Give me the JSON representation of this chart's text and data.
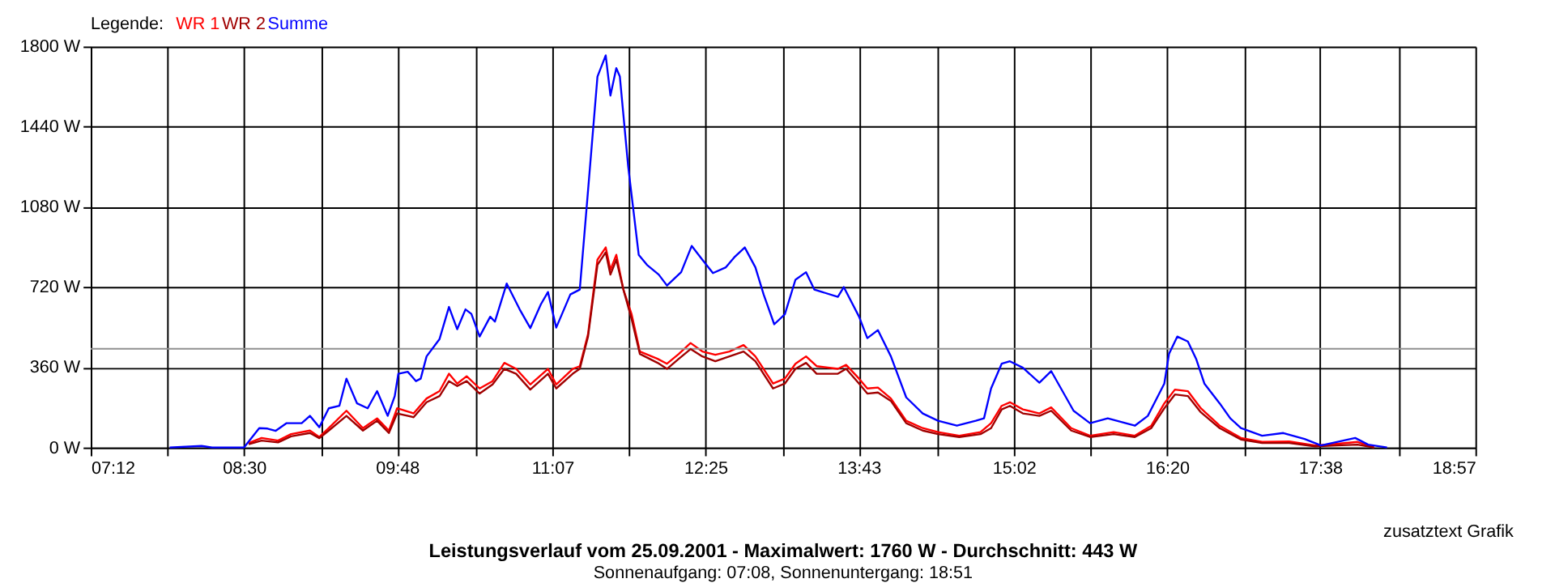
{
  "chart_data": {
    "type": "line",
    "title": "Leistungsverlauf vom 25.09.2001 - Maximalwert: 1760 W - Durchschnitt: 443 W",
    "subtitle": "Sonnenaufgang: 07:08, Sonnenuntergang: 18:51",
    "legend_title": "Legende:",
    "annotations": [
      "zusatztext Grafik"
    ],
    "series": [
      {
        "name": "WR 1",
        "color": "#ff0000",
        "x": [
          8.54,
          8.65,
          8.79,
          8.9,
          9.06,
          9.14,
          9.22,
          9.37,
          9.51,
          9.63,
          9.73,
          9.8,
          9.94,
          10.05,
          10.16,
          10.24,
          10.31,
          10.39,
          10.5,
          10.61,
          10.71,
          10.81,
          10.93,
          11.08,
          11.15,
          11.29,
          11.35,
          11.42,
          11.5,
          11.57,
          11.61,
          11.66,
          11.72,
          11.79,
          11.86,
          12.01,
          12.09,
          12.19,
          12.29,
          12.39,
          12.5,
          12.62,
          12.74,
          12.84,
          12.99,
          13.09,
          13.18,
          13.27,
          13.36,
          13.54,
          13.61,
          13.72,
          13.79,
          13.88,
          13.99,
          14.12,
          14.26,
          14.39,
          14.57,
          14.75,
          14.84,
          14.93,
          15.0,
          15.11,
          15.25,
          15.35,
          15.52,
          15.68,
          15.88,
          16.06,
          16.2,
          16.31,
          16.4,
          16.51,
          16.62,
          16.78,
          16.96,
          17.14,
          17.37,
          17.59,
          17.77,
          17.95,
          18.09
        ],
        "values": [
          20,
          43,
          31,
          60,
          76,
          47,
          87,
          165,
          87,
          131,
          76,
          176,
          153,
          220,
          253,
          331,
          287,
          320,
          265,
          298,
          380,
          353,
          283,
          353,
          283,
          353,
          365,
          509,
          843,
          898,
          798,
          865,
          709,
          598,
          431,
          398,
          376,
          420,
          469,
          431,
          416,
          431,
          460,
          409,
          287,
          309,
          376,
          409,
          365,
          353,
          371,
          309,
          265,
          269,
          220,
          120,
          87,
          69,
          53,
          69,
          109,
          187,
          203,
          171,
          153,
          180,
          87,
          53,
          69,
          53,
          98,
          198,
          260,
          253,
          176,
          98,
          43,
          25,
          27,
          9,
          16,
          25,
          0
        ]
      },
      {
        "name": "WR 2",
        "color": "#a00000",
        "x": [
          8.54,
          8.65,
          8.79,
          8.9,
          9.06,
          9.14,
          9.22,
          9.37,
          9.51,
          9.63,
          9.73,
          9.8,
          9.94,
          10.05,
          10.16,
          10.24,
          10.31,
          10.39,
          10.5,
          10.61,
          10.71,
          10.81,
          10.93,
          11.08,
          11.15,
          11.29,
          11.35,
          11.42,
          11.5,
          11.57,
          11.61,
          11.66,
          11.72,
          11.79,
          11.86,
          12.01,
          12.09,
          12.19,
          12.29,
          12.39,
          12.5,
          12.62,
          12.74,
          12.84,
          12.99,
          13.09,
          13.18,
          13.27,
          13.36,
          13.54,
          13.61,
          13.72,
          13.79,
          13.88,
          13.99,
          14.12,
          14.26,
          14.39,
          14.57,
          14.75,
          14.84,
          14.93,
          15.0,
          15.11,
          15.25,
          15.35,
          15.52,
          15.68,
          15.88,
          16.06,
          16.2,
          16.31,
          16.4,
          16.51,
          16.62,
          16.78,
          16.96,
          17.14,
          17.37,
          17.59,
          17.77,
          17.95,
          18.09
        ],
        "values": [
          15,
          31,
          23,
          50,
          65,
          42,
          76,
          142,
          76,
          120,
          65,
          153,
          136,
          203,
          231,
          298,
          276,
          298,
          242,
          283,
          353,
          331,
          260,
          331,
          265,
          331,
          353,
          498,
          820,
          876,
          776,
          843,
          709,
          576,
          420,
          380,
          353,
          398,
          442,
          409,
          387,
          409,
          431,
          387,
          265,
          287,
          353,
          380,
          331,
          331,
          353,
          287,
          242,
          247,
          209,
          109,
          76,
          60,
          47,
          60,
          87,
          171,
          187,
          153,
          142,
          165,
          76,
          47,
          60,
          47,
          87,
          176,
          238,
          231,
          158,
          87,
          36,
          20,
          20,
          5,
          9,
          13,
          0
        ]
      },
      {
        "name": "Summe",
        "color": "#0000ff",
        "x": [
          7.87,
          8.14,
          8.23,
          8.5,
          8.63,
          8.7,
          8.77,
          8.86,
          8.99,
          9.06,
          9.14,
          9.22,
          9.31,
          9.37,
          9.46,
          9.55,
          9.63,
          9.72,
          9.78,
          9.81,
          9.89,
          9.96,
          10.0,
          10.05,
          10.16,
          10.24,
          10.31,
          10.38,
          10.43,
          10.5,
          10.59,
          10.63,
          10.73,
          10.84,
          10.93,
          11.02,
          11.08,
          11.15,
          11.27,
          11.35,
          11.42,
          11.5,
          11.57,
          11.61,
          11.66,
          11.69,
          11.76,
          11.85,
          11.92,
          12.02,
          12.09,
          12.21,
          12.3,
          12.39,
          12.48,
          12.59,
          12.66,
          12.75,
          12.84,
          12.91,
          13.0,
          13.09,
          13.18,
          13.27,
          13.34,
          13.54,
          13.59,
          13.72,
          13.79,
          13.88,
          13.99,
          14.12,
          14.26,
          14.39,
          14.55,
          14.71,
          14.78,
          14.84,
          14.93,
          15.0,
          15.11,
          15.25,
          15.35,
          15.54,
          15.68,
          15.83,
          16.06,
          16.17,
          16.31,
          16.35,
          16.42,
          16.51,
          16.58,
          16.65,
          16.78,
          16.87,
          16.96,
          17.14,
          17.32,
          17.5,
          17.64,
          17.93,
          18.04,
          18.2
        ],
        "values": [
          0,
          7,
          0,
          0,
          87,
          85,
          75,
          109,
          109,
          142,
          91,
          176,
          187,
          309,
          198,
          176,
          253,
          142,
          231,
          331,
          340,
          298,
          309,
          409,
          487,
          631,
          531,
          620,
          600,
          498,
          587,
          565,
          736,
          620,
          536,
          643,
          698,
          538,
          687,
          709,
          1153,
          1665,
          1760,
          1580,
          1703,
          1665,
          1265,
          865,
          820,
          776,
          727,
          787,
          905,
          843,
          783,
          809,
          853,
          898,
          809,
          687,
          553,
          598,
          753,
          787,
          709,
          676,
          720,
          587,
          491,
          527,
          409,
          225,
          153,
          120,
          98,
          120,
          131,
          265,
          376,
          387,
          358,
          291,
          343,
          165,
          109,
          131,
          98,
          142,
          287,
          420,
          498,
          476,
          398,
          287,
          198,
          131,
          87,
          53,
          65,
          38,
          9,
          43,
          13,
          0
        ]
      }
    ],
    "xlim": [
      7.2,
      18.95
    ],
    "xticks": [
      {
        "value": 7.2,
        "label": "07:12"
      },
      {
        "value": 7.853,
        "label": null
      },
      {
        "value": 8.5,
        "label": "08:30"
      },
      {
        "value": 9.158,
        "label": null
      },
      {
        "value": 9.8,
        "label": "09:48"
      },
      {
        "value": 10.464,
        "label": null
      },
      {
        "value": 11.117,
        "label": "11:07"
      },
      {
        "value": 11.769,
        "label": null
      },
      {
        "value": 12.417,
        "label": "12:25"
      },
      {
        "value": 13.075,
        "label": null
      },
      {
        "value": 13.717,
        "label": "13:43"
      },
      {
        "value": 14.381,
        "label": null
      },
      {
        "value": 15.033,
        "label": "15:02"
      },
      {
        "value": 15.686,
        "label": null
      },
      {
        "value": 16.333,
        "label": "16:20"
      },
      {
        "value": 16.992,
        "label": null
      },
      {
        "value": 17.633,
        "label": "17:38"
      },
      {
        "value": 18.297,
        "label": null
      },
      {
        "value": 18.95,
        "label": "18:57"
      }
    ],
    "ylim": [
      0,
      1800
    ],
    "yticks": [
      {
        "value": 0,
        "label": "0 W"
      },
      {
        "value": 360,
        "label": "360 W"
      },
      {
        "value": 720,
        "label": "720 W"
      },
      {
        "value": 1080,
        "label": "1080 W"
      },
      {
        "value": 1440,
        "label": "1440 W"
      },
      {
        "value": 1800,
        "label": "1800 W"
      }
    ],
    "ref_lines": [
      {
        "axis": "y",
        "value": 443,
        "label": null,
        "color": "#909090"
      }
    ],
    "grid": true,
    "legend": "top left",
    "marker": "none",
    "line_style": "solid"
  }
}
